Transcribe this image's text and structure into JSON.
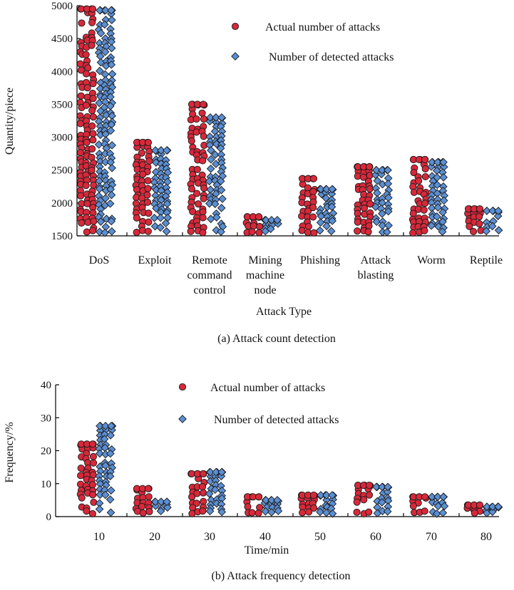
{
  "chart_data": [
    {
      "type": "scatter",
      "title": "",
      "caption": "(a) Attack count detection",
      "xlabel": "Attack Type",
      "ylabel": "Quantity/piece",
      "ylim": [
        1500,
        5000
      ],
      "yticks": [
        1500,
        2000,
        2500,
        3000,
        3500,
        4000,
        4500,
        5000
      ],
      "categories": [
        [
          "DoS"
        ],
        [
          "Exploit"
        ],
        [
          "Remote",
          "command",
          "control"
        ],
        [
          "Mining",
          "machine",
          "node"
        ],
        [
          "Phishing"
        ],
        [
          "Attack",
          "blasting"
        ],
        [
          "Worm"
        ],
        [
          "Reptile"
        ]
      ],
      "series": [
        {
          "name": "Actual number of attacks",
          "marker": "circle",
          "color": "#d8283a",
          "values": [
            4950,
            2920,
            3500,
            1790,
            2370,
            2550,
            2660,
            1910
          ]
        },
        {
          "name": "Number of detected attacks",
          "marker": "diamond",
          "color": "#5b8fd4",
          "values": [
            4930,
            2800,
            3300,
            1740,
            2210,
            2500,
            2620,
            1880
          ]
        }
      ],
      "legend": "top-right"
    },
    {
      "type": "scatter",
      "title": "",
      "caption": "(b) Attack frequency detection",
      "xlabel": "Time/min",
      "ylabel": "Frequency/%",
      "ylim": [
        0,
        40
      ],
      "yticks": [
        0,
        10,
        20,
        30,
        40
      ],
      "categories": [
        [
          "10"
        ],
        [
          "20"
        ],
        [
          "30"
        ],
        [
          "40"
        ],
        [
          "50"
        ],
        [
          "60"
        ],
        [
          "70"
        ],
        [
          "80"
        ]
      ],
      "series": [
        {
          "name": "Actual number of attacks",
          "marker": "circle",
          "color": "#d8283a",
          "values": [
            22,
            8.5,
            13,
            6,
            6.5,
            9.5,
            6,
            3.5
          ]
        },
        {
          "name": "Number of detected attacks",
          "marker": "diamond",
          "color": "#5b8fd4",
          "values": [
            27.5,
            4.5,
            13.5,
            5,
            6.5,
            9,
            6,
            3
          ]
        }
      ],
      "legend": "top-center"
    }
  ]
}
